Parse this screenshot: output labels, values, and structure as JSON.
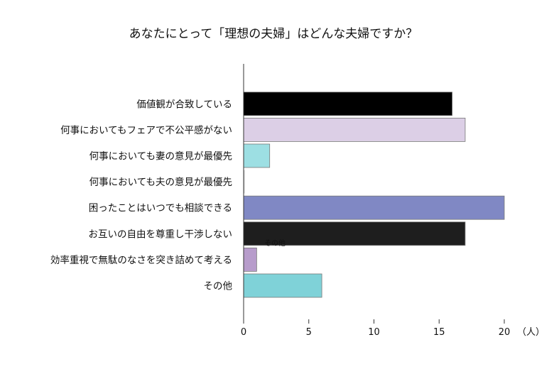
{
  "chart_data": {
    "type": "bar",
    "orientation": "horizontal",
    "title": "あなたにとって「理想の夫婦」はどんな夫婦ですか？",
    "categories": [
      "価値観が合致している",
      "何事においてもフェアで不公平感がない",
      "何事においても妻の意見が最優先",
      "何事においても夫の意見が最優先",
      "困ったことはいつでも相談できる",
      "お互いの自由を尊重し干渉しない",
      "効率重視で無駄のなさを突き詰めて考える",
      "その他"
    ],
    "values": [
      16,
      17,
      2,
      0,
      20,
      17,
      1,
      6
    ],
    "colors": [
      "#000000",
      "#dccfe6",
      "#9ddfe3",
      "#cccccc",
      "#8088c4",
      "#1e1e1e",
      "#b79ccb",
      "#7fd2d8"
    ],
    "xlim": [
      0,
      20
    ],
    "xticks": [
      "0",
      "5",
      "10",
      "15",
      "20"
    ],
    "xlabel": "（人）",
    "annotation": "その他",
    "grid": false,
    "legend": "none"
  }
}
